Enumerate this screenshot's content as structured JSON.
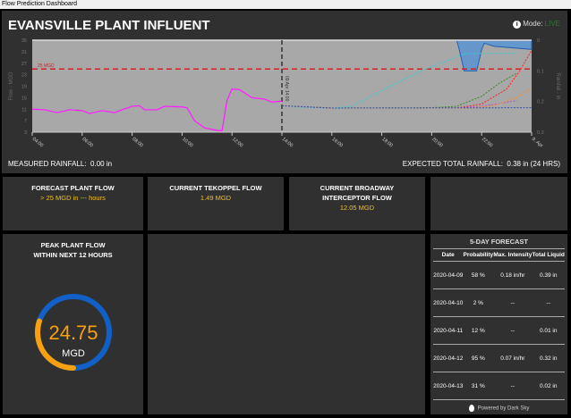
{
  "window_title": "Flow Prediction Dashboard",
  "header": {
    "title": "EVANSVILLE PLANT INFLUENT",
    "mode_label": "Mode:",
    "mode_value": "LIVE"
  },
  "rainfall": {
    "measured_label": "MEASURED RAINFALL:",
    "measured_value": "0.00 in",
    "expected_label": "EXPECTED TOTAL RAINFALL:",
    "expected_value": "0.38 in (24 HRS)"
  },
  "chart_data": {
    "type": "line",
    "ylabel": "Flow - MGD",
    "y2label": "Rainfall - in",
    "ylim": [
      3,
      35
    ],
    "y2lim": [
      0,
      0.3
    ],
    "xlim": [
      4,
      24
    ],
    "yticks": [
      "35",
      "31",
      "27",
      "23",
      "19",
      "15",
      "11",
      "7",
      "3"
    ],
    "y2ticks": [
      "0",
      "0.1",
      "0.2",
      "0.3"
    ],
    "xticks": [
      {
        "h": 4,
        "label": "04:00"
      },
      {
        "h": 6,
        "label": "06:00"
      },
      {
        "h": 8,
        "label": "08:00"
      },
      {
        "h": 10,
        "label": "10:00"
      },
      {
        "h": 12,
        "label": "12:00"
      },
      {
        "h": 14,
        "label": "14:00"
      },
      {
        "h": 16,
        "label": "16:00"
      },
      {
        "h": 18,
        "label": "18:00"
      },
      {
        "h": 20,
        "label": "20:00"
      },
      {
        "h": 22,
        "label": "22:00"
      },
      {
        "h": 24,
        "label": "9. Apr"
      }
    ],
    "threshold": {
      "value": 25,
      "label": "25 MGD",
      "color": "#d42020"
    },
    "current_time": {
      "h": 14,
      "label": "09 Apr 14:00"
    },
    "measured": {
      "name": "Measured flow",
      "color": "#ff20ff",
      "points": [
        [
          4,
          11
        ],
        [
          4.5,
          10.8
        ],
        [
          5,
          9.8
        ],
        [
          5.5,
          10.8
        ],
        [
          6,
          10.5
        ],
        [
          6.3,
          9.5
        ],
        [
          6.8,
          10.5
        ],
        [
          7.3,
          9.8
        ],
        [
          7.5,
          10.5
        ],
        [
          8,
          12
        ],
        [
          8.3,
          12.2
        ],
        [
          8.5,
          10.8
        ],
        [
          9,
          10.8
        ],
        [
          9.3,
          12
        ],
        [
          10,
          11.8
        ],
        [
          10.2,
          11.5
        ],
        [
          10.5,
          7
        ],
        [
          10.9,
          4.5
        ],
        [
          11.4,
          3.6
        ],
        [
          11.6,
          3.5
        ],
        [
          11.8,
          14
        ],
        [
          12,
          18
        ],
        [
          12.3,
          17.8
        ],
        [
          12.8,
          15
        ],
        [
          13.3,
          14.5
        ],
        [
          13.6,
          13.5
        ],
        [
          14,
          13.8
        ]
      ]
    },
    "forecasts": [
      {
        "name": "cyan",
        "color": "#30d0d0",
        "points": [
          [
            14,
            12.2
          ],
          [
            15,
            11.5
          ],
          [
            16,
            11.4
          ],
          [
            16.8,
            12
          ],
          [
            18,
            17.5
          ],
          [
            19.5,
            24
          ],
          [
            20.8,
            28.5
          ],
          [
            21.3,
            30.3
          ],
          [
            22,
            30.4
          ],
          [
            23.4,
            30.4
          ]
        ]
      },
      {
        "name": "green",
        "color": "#3a8a20",
        "points": [
          [
            14,
            12.2
          ],
          [
            16,
            11.4
          ],
          [
            20,
            11.5
          ],
          [
            21,
            12
          ],
          [
            22,
            15.5
          ],
          [
            22.7,
            20
          ],
          [
            23.4,
            23.5
          ]
        ]
      },
      {
        "name": "red",
        "color": "#ff2020",
        "points": [
          [
            14,
            12.2
          ],
          [
            16,
            11.4
          ],
          [
            21,
            11.4
          ],
          [
            22,
            12.8
          ],
          [
            23,
            18
          ],
          [
            23.5,
            24
          ],
          [
            24,
            31.5
          ]
        ]
      },
      {
        "name": "purple",
        "color": "#b050e0",
        "points": [
          [
            14,
            12.2
          ],
          [
            16,
            11.4
          ],
          [
            21,
            11.4
          ],
          [
            22,
            12
          ],
          [
            23.4,
            14
          ]
        ]
      },
      {
        "name": "orange",
        "color": "#ff8c20",
        "points": [
          [
            14,
            12.2
          ],
          [
            16,
            11.4
          ],
          [
            21.5,
            11.4
          ],
          [
            22.5,
            12.3
          ],
          [
            23.4,
            15
          ],
          [
            24,
            18.5
          ]
        ]
      },
      {
        "name": "blue",
        "color": "#3050b0",
        "points": [
          [
            14,
            12.2
          ],
          [
            16,
            11.4
          ],
          [
            24,
            11.5
          ]
        ]
      }
    ],
    "rain": {
      "color": "#4a90d8",
      "points": [
        [
          14,
          0
        ],
        [
          21,
          0
        ],
        [
          21.1,
          0.03
        ],
        [
          21.3,
          0.1
        ],
        [
          21.8,
          0.1
        ],
        [
          22,
          0.03
        ],
        [
          22.1,
          0.01
        ],
        [
          22.5,
          0.02
        ],
        [
          24,
          0.03
        ]
      ]
    }
  },
  "panels": {
    "forecast": {
      "title": "FORECAST PLANT FLOW",
      "value": "> 25 MGD in --- hours"
    },
    "tekoppel": {
      "title": "CURRENT TEKOPPEL FLOW",
      "value": "1.49 MGD"
    },
    "broadway": {
      "title1": "CURRENT BROADWAY",
      "title2": "INTERCEPTOR FLOW",
      "value": "12.05 MGD"
    },
    "peak": {
      "title1": "PEAK PLANT FLOW",
      "title2": "WITHIN NEXT 12 HOURS",
      "value": "24.75",
      "unit": "MGD",
      "fraction": 0.3
    }
  },
  "five_day": {
    "title": "5-DAY FORECAST",
    "columns": [
      "Date",
      "Probability",
      "Max. Intensity",
      "Total Liquid"
    ],
    "rows": [
      [
        "2020-04-09",
        "58 %",
        "0.18 in/hr",
        "0.39 in"
      ],
      [
        "2020-04-10",
        "2 %",
        "--",
        "--"
      ],
      [
        "2020-04-11",
        "12 %",
        "--",
        "0.01 in"
      ],
      [
        "2020-04-12",
        "95 %",
        "0.07 in/hr",
        "0.32 in"
      ],
      [
        "2020-04-13",
        "31 %",
        "--",
        "0.02 in"
      ]
    ],
    "footer": "Powered by Dark Sky"
  }
}
